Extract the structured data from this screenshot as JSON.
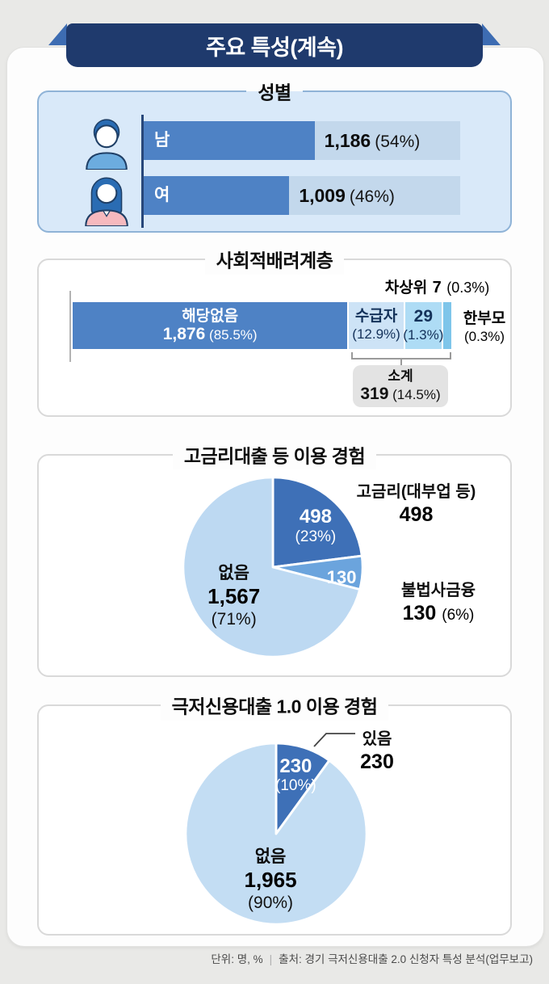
{
  "banner": {
    "title": "주요 특성(계속)"
  },
  "footer": {
    "unit": "단위: 명, %",
    "divider": "|",
    "source": "출처: 경기 극저신용대출 2.0 신청자 특성 분석(업무보고)"
  },
  "sections": {
    "gender": {
      "title": "성별",
      "rows": [
        {
          "label": "남",
          "value": "1,186",
          "pct_text": "(54%)",
          "display_width_pct": 54
        },
        {
          "label": "여",
          "value": "1,009",
          "pct_text": "(46%)",
          "display_width_pct": 46
        }
      ]
    },
    "social": {
      "title": "사회적배려계층",
      "callout_top": {
        "label": "차상위",
        "value": "7",
        "pct_text": "(0.3%)"
      },
      "side_label": {
        "label": "한부모",
        "pct_text": "(0.3%)"
      },
      "segments": [
        {
          "line1": "해당없음",
          "value": "1,876",
          "pct_text": "(85.5%)",
          "display_width_pct": 73.6,
          "color": "#4e82c5"
        },
        {
          "line1": "수급자",
          "pct_text": "(12.9%)",
          "display_width_pct": 14.6,
          "color": "#cde3f6"
        },
        {
          "value": "29",
          "pct_text": "(1.3%)",
          "display_width_pct": 9.6,
          "color": "#aedcf5"
        },
        {
          "display_width_pct": 2.2,
          "color": "#7ec5ea"
        }
      ],
      "subtotal": {
        "label": "소계",
        "value": "319",
        "pct_text": "(14.5%)"
      }
    },
    "pie1": {
      "title": "고금리대출 등 이용 경험",
      "inner_value": "498",
      "inner_pct": "(23%)",
      "inner_value2": "130",
      "none_label": "없음",
      "none_value": "1,567",
      "none_pct": "(71%)",
      "label1": "고금리(대부업 등)",
      "label1_value": "498",
      "label2": "불법사금융",
      "label2_value": "130",
      "label2_pct": "(6%)"
    },
    "pie2": {
      "title": "극저신용대출 1.0 이용 경험",
      "inner_value": "230",
      "inner_pct": "(10%)",
      "none_label": "없음",
      "none_value": "1,965",
      "none_pct": "(90%)",
      "callout_label": "있음",
      "callout_value": "230"
    }
  },
  "colors": {
    "ribbon_navy": "#1f3a6d",
    "ribbon_fold": "#3d6cb2",
    "gender_panel_bg": "#d9e9f9",
    "bar_fill": "#4e82c5",
    "bar_track": "#c3d8ec",
    "pie_dark": "#3e70b7",
    "pie_mid": "#6ba4dd",
    "pie_light": "#bdd9f2",
    "subtotal_box": "#e3e3e3"
  },
  "chart_data": [
    {
      "type": "bar",
      "title": "성별",
      "categories": [
        "남",
        "여"
      ],
      "values": [
        1186,
        1009
      ],
      "pct": [
        54,
        46
      ],
      "orientation": "horizontal",
      "bar_color": "#4e82c5",
      "track_color": "#c3d8ec"
    },
    {
      "type": "bar",
      "title": "사회적배려계층",
      "stacked": true,
      "orientation": "horizontal",
      "segments_shown": [
        {
          "label": "해당없음",
          "value": 1876,
          "pct": 85.5
        },
        {
          "label": "수급자",
          "pct": 12.9
        },
        {
          "value": 29,
          "pct": 1.3
        }
      ],
      "callouts": [
        {
          "label": "차상위",
          "value": 7,
          "pct": 0.3
        },
        {
          "label": "한부모",
          "pct": 0.3
        }
      ],
      "subtotal": {
        "label": "소계",
        "value": 319,
        "pct": 14.5
      }
    },
    {
      "type": "pie",
      "title": "고금리대출 등 이용 경험",
      "start_angle_deg": -90,
      "clockwise": true,
      "slices": [
        {
          "label": "고금리(대부업 등)",
          "value": 498,
          "pct": 23,
          "color": "#3e70b7"
        },
        {
          "label": "불법사금융",
          "value": 130,
          "pct": 6,
          "color": "#6ba4dd"
        },
        {
          "label": "없음",
          "value": 1567,
          "pct": 71,
          "color": "#bdd9f2"
        }
      ]
    },
    {
      "type": "pie",
      "title": "극저신용대출 1.0 이용 경험",
      "start_angle_deg": -90,
      "clockwise": true,
      "slices": [
        {
          "label": "있음",
          "value": 230,
          "pct": 10,
          "color": "#3e70b7"
        },
        {
          "label": "없음",
          "value": 1965,
          "pct": 90,
          "color": "#c3ddf3"
        }
      ]
    }
  ]
}
